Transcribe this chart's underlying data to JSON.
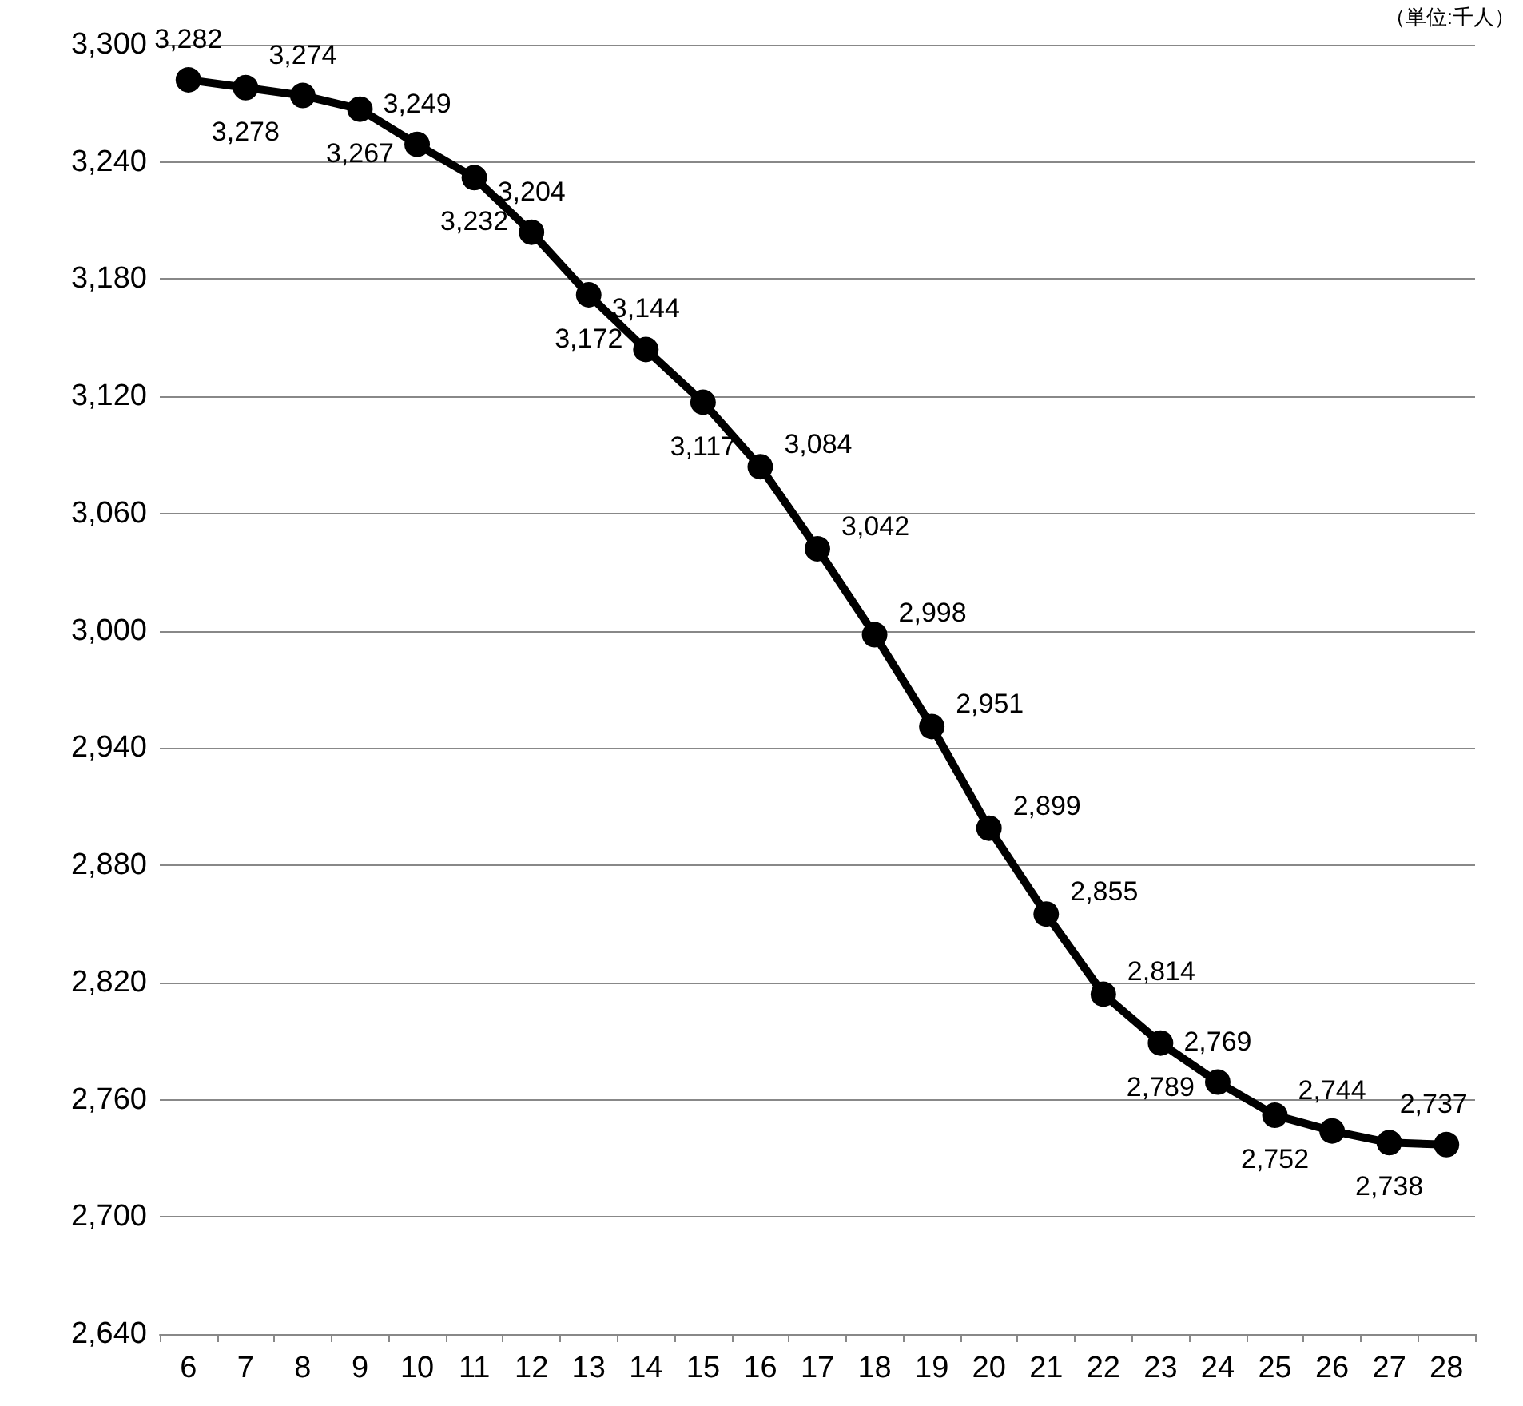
{
  "chart_data": {
    "type": "line",
    "categories": [
      "6",
      "7",
      "8",
      "9",
      "10",
      "11",
      "12",
      "13",
      "14",
      "15",
      "16",
      "17",
      "18",
      "19",
      "20",
      "21",
      "22",
      "23",
      "24",
      "25",
      "26",
      "27",
      "28"
    ],
    "series": [
      {
        "color": "#000000",
        "values": [
          3282,
          3278,
          3274,
          3267,
          3249,
          3232,
          3204,
          3172,
          3144,
          3117,
          3084,
          3042,
          2998,
          2951,
          2899,
          2855,
          2814,
          2789,
          2769,
          2752,
          2744,
          2738,
          2737
        ],
        "value_labels": [
          "3,282",
          "3,278",
          "3,274",
          "3,267",
          "3,249",
          "3,232",
          "3,204",
          "3,172",
          "3,144",
          "3,117",
          "3,084",
          "3,042",
          "2,998",
          "2,951",
          "2,899",
          "2,855",
          "2,814",
          "2,789",
          "2,769",
          "2,752",
          "2,744",
          "2,738",
          "2,737"
        ]
      }
    ],
    "ylim": [
      2640,
      3300
    ],
    "yticks": [
      {
        "value": 2640,
        "label": "2,640"
      },
      {
        "value": 2700,
        "label": "2,700"
      },
      {
        "value": 2760,
        "label": "2,760"
      },
      {
        "value": 2820,
        "label": "2,820"
      },
      {
        "value": 2880,
        "label": "2,880"
      },
      {
        "value": 2940,
        "label": "2,940"
      },
      {
        "value": 3000,
        "label": "3,000"
      },
      {
        "value": 3060,
        "label": "3,060"
      },
      {
        "value": 3120,
        "label": "3,120"
      },
      {
        "value": 3180,
        "label": "3,180"
      },
      {
        "value": 3240,
        "label": "3,240"
      },
      {
        "value": 3300,
        "label": "3,300"
      }
    ],
    "grid": "y",
    "marker": "circle",
    "line_style": "solid",
    "annotations": [
      "（単位:千人）"
    ]
  }
}
